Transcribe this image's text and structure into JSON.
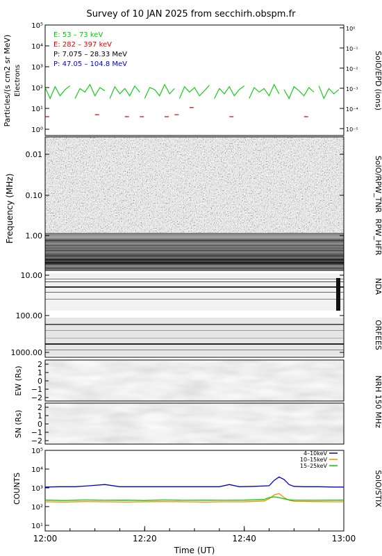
{
  "title": "Survey of 10 JAN 2025 from secchirh.obspm.fr",
  "xlabel": "Time (UT)",
  "x_ticks": [
    "12:00",
    "12:20",
    "12:40",
    "13:00"
  ],
  "panels": {
    "epd": {
      "ylabel_main": "Particles/(s cm2 sr MeV)",
      "ylabel_sub": "Electrons",
      "right_label": "SolO/EPD (ions)",
      "y_ticks": [
        "10⁰",
        "10¹",
        "10²",
        "10³",
        "10⁴",
        "10⁵"
      ],
      "y_right_ticks": [
        "10⁻⁵",
        "10⁻⁴",
        "10⁻³",
        "10⁻²",
        "10⁻¹",
        "10⁰"
      ],
      "legend": [
        {
          "label": "E: 53 – 73 keV",
          "color": "#00cc00"
        },
        {
          "label": "E: 282 – 397 keV",
          "color": "#dd0000"
        },
        {
          "label": "P: 7.075 – 28.33 MeV",
          "color": "#000000"
        },
        {
          "label": "P: 47.05 – 104.8 MeV",
          "color": "#0000cc"
        }
      ]
    },
    "rpw": {
      "ylabel": "Frequency (MHz)",
      "y_ticks": [
        "0.01",
        "0.10",
        "1.00",
        "10.00",
        "100.00",
        "1000.00"
      ],
      "right_label_tnr": "SolO/RPW_TNR",
      "right_label_hfr": "RPW_HFR",
      "right_label_nda": "NDA",
      "right_label_orfees": "ORFEES"
    },
    "nrh": {
      "ylabel_ew": "EW (Rs)",
      "ylabel_sn": "SN (Rs)",
      "y_ticks": [
        "2",
        "1",
        "0",
        "−1",
        "−2"
      ],
      "right_label": "NRH 150 MHz"
    },
    "stix": {
      "ylabel": "COUNTS",
      "right_label": "SolO/STIX",
      "y_ticks": [
        "10⁵",
        "10⁴",
        "10³",
        "10²",
        "10¹"
      ],
      "legend": [
        {
          "label": "4–10keV",
          "color": "#0000cc"
        },
        {
          "label": "10–15keV",
          "color": "#ff8800"
        },
        {
          "label": "15–25keV",
          "color": "#00cc00"
        }
      ]
    }
  },
  "chart_data": [
    {
      "type": "line",
      "title": "",
      "x_range": [
        "12:00",
        "13:00"
      ],
      "ylim": [
        1,
        100000
      ],
      "y_scale": "log",
      "series": [
        {
          "name": "E: 53 – 73 keV",
          "x": [
            0,
            1,
            2,
            3,
            4,
            5,
            6,
            7,
            8,
            9,
            10,
            11,
            12,
            13,
            14,
            15,
            16,
            17,
            18,
            19,
            20,
            21,
            22,
            23,
            24,
            25,
            26,
            27,
            28,
            29,
            30,
            31,
            32,
            33,
            34,
            35,
            36,
            37,
            38,
            39,
            40,
            41,
            42,
            43,
            44,
            45,
            46,
            47,
            48,
            49,
            50,
            51,
            52,
            53,
            54,
            55,
            56,
            57,
            58,
            59
          ],
          "y": [
            100,
            30,
            110,
            40,
            80,
            120,
            30,
            90,
            60,
            140,
            40,
            100,
            70,
            30,
            110,
            50,
            90,
            40,
            120,
            60,
            30,
            100,
            80,
            40,
            140,
            50,
            90,
            30,
            110,
            60,
            100,
            40,
            70,
            130,
            30,
            90,
            50,
            110,
            40,
            80,
            120,
            30,
            100,
            60,
            90,
            40,
            140,
            50,
            80,
            30,
            110,
            70,
            40,
            100,
            60,
            120,
            30,
            90,
            50,
            80
          ]
        },
        {
          "name": "E: 282 – 397 keV",
          "x": [
            0,
            10,
            16,
            19,
            24,
            26,
            29,
            37,
            52
          ],
          "y": [
            4,
            5,
            4,
            4,
            4,
            5,
            11,
            4,
            4
          ]
        }
      ]
    },
    {
      "type": "heatmap",
      "title": "",
      "x_range": [
        "12:00",
        "13:00"
      ],
      "ylim": [
        0.005,
        1000
      ],
      "y_scale": "log",
      "bands": [
        "SolO/RPW_TNR",
        "RPW_HFR",
        "NDA",
        "ORFEES"
      ]
    },
    {
      "type": "heatmap",
      "title": "",
      "x_range": [
        "12:00",
        "13:00"
      ],
      "ylim": [
        -2.5,
        2.5
      ],
      "bands": [
        "EW (Rs)",
        "SN (Rs)"
      ]
    },
    {
      "type": "line",
      "title": "",
      "x_range": [
        "12:00",
        "13:00"
      ],
      "ylim": [
        5,
        100000
      ],
      "y_scale": "log",
      "series": [
        {
          "name": "4–10keV",
          "x": [
            0,
            3,
            6,
            9,
            12,
            15,
            18,
            20,
            24,
            28,
            32,
            35,
            37,
            39,
            42,
            45,
            46,
            47,
            48,
            49,
            50,
            52,
            55,
            58,
            60
          ],
          "y": [
            1100,
            1150,
            1150,
            1300,
            1500,
            1150,
            1150,
            1150,
            1150,
            1150,
            1150,
            1150,
            1500,
            1150,
            1200,
            1300,
            2500,
            3800,
            2800,
            1500,
            1200,
            1150,
            1150,
            1100,
            1100
          ]
        },
        {
          "name": "10–15keV",
          "x": [
            0,
            4,
            8,
            12,
            16,
            20,
            24,
            28,
            32,
            36,
            40,
            44,
            45,
            46,
            47,
            48,
            49,
            50,
            54,
            58,
            60
          ],
          "y": [
            180,
            175,
            185,
            180,
            175,
            180,
            185,
            180,
            175,
            180,
            180,
            200,
            260,
            420,
            500,
            300,
            220,
            190,
            185,
            180,
            180
          ]
        },
        {
          "name": "15–25keV",
          "x": [
            0,
            4,
            8,
            12,
            16,
            20,
            24,
            28,
            32,
            36,
            40,
            44,
            45,
            46,
            47,
            48,
            49,
            50,
            54,
            58,
            60
          ],
          "y": [
            220,
            210,
            225,
            215,
            220,
            210,
            225,
            215,
            220,
            215,
            220,
            240,
            300,
            330,
            300,
            260,
            230,
            220,
            215,
            220,
            220
          ]
        }
      ]
    }
  ]
}
